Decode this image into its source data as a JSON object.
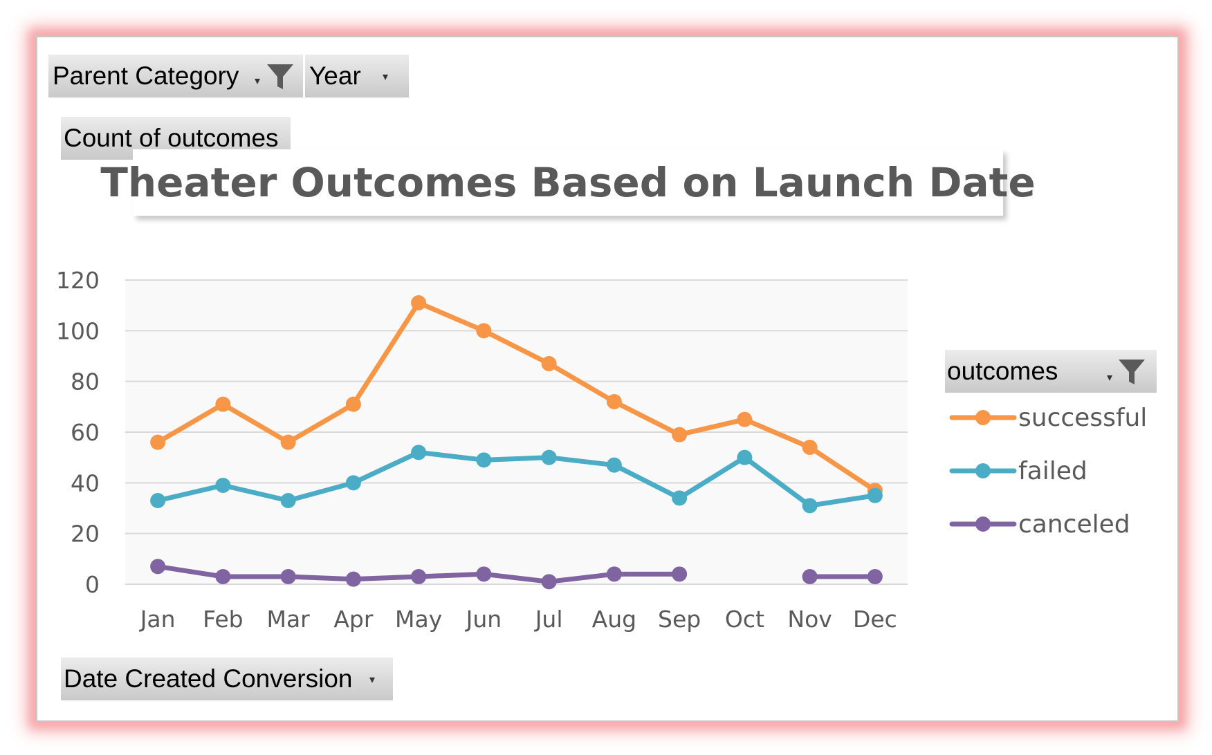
{
  "filters": {
    "parent_category": "Parent Category",
    "year": "Year",
    "values_field": "Count of outcomes",
    "axis_field": "Date Created Conversion",
    "legend_field": "outcomes"
  },
  "chart_data": {
    "type": "line",
    "title": "Theater Outcomes Based on Launch Date",
    "xlabel": "",
    "ylabel": "",
    "categories": [
      "Jan",
      "Feb",
      "Mar",
      "Apr",
      "May",
      "Jun",
      "Jul",
      "Aug",
      "Sep",
      "Oct",
      "Nov",
      "Dec"
    ],
    "ylim": [
      0,
      120
    ],
    "yticks": [
      0,
      20,
      40,
      60,
      80,
      100,
      120
    ],
    "grid": true,
    "legend_position": "right",
    "series": [
      {
        "name": "successful",
        "color": "#f79646",
        "values": [
          56,
          71,
          56,
          71,
          111,
          100,
          87,
          72,
          59,
          65,
          54,
          37
        ]
      },
      {
        "name": "failed",
        "color": "#4bacc6",
        "values": [
          33,
          39,
          33,
          40,
          52,
          49,
          50,
          47,
          34,
          50,
          31,
          35
        ]
      },
      {
        "name": "canceled",
        "color": "#8064a2",
        "values": [
          7,
          3,
          3,
          2,
          3,
          4,
          1,
          4,
          4,
          null,
          3,
          3
        ]
      }
    ]
  }
}
